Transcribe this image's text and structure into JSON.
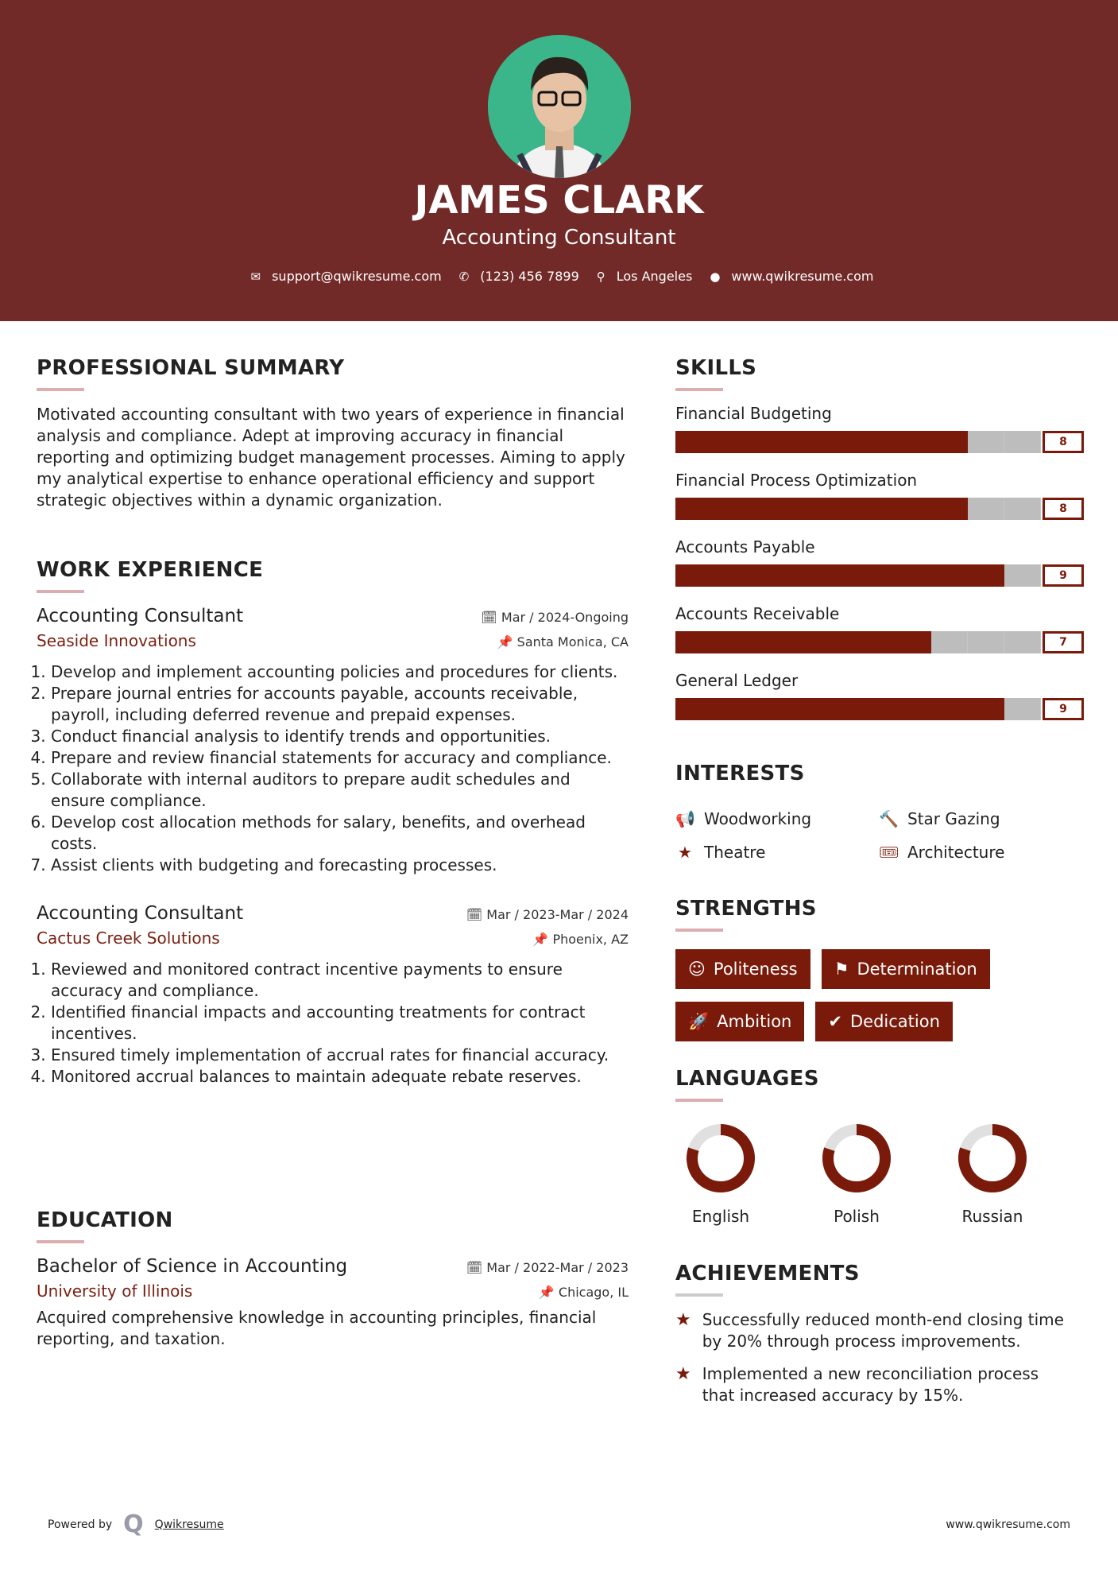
{
  "colors": {
    "header": "#722a28",
    "accent": "#7a1a0a",
    "bar_empty": "#bdbdbd"
  },
  "header": {
    "name": "JAMES CLARK",
    "title": "Accounting Consultant",
    "contacts": [
      {
        "icon": "envelope-icon",
        "text": "support@qwikresume.com"
      },
      {
        "icon": "phone-icon",
        "text": "(123) 456 7899"
      },
      {
        "icon": "map-pin-icon",
        "text": "Los Angeles"
      },
      {
        "icon": "globe-icon",
        "text": "www.qwikresume.com"
      }
    ]
  },
  "summary": {
    "heading": "PROFESSIONAL SUMMARY",
    "text": "Motivated accounting consultant with two years of experience in financial analysis and compliance. Adept at improving accuracy in financial reporting and optimizing budget management processes. Aiming to apply my analytical expertise to enhance operational efficiency and support strategic objectives within a dynamic organization."
  },
  "work": {
    "heading": "WORK EXPERIENCE",
    "jobs": [
      {
        "title": "Accounting Consultant",
        "date": "Mar / 2024-Ongoing",
        "company": "Seaside Innovations",
        "location": "Santa Monica, CA",
        "bullets": [
          "Develop and implement accounting policies and procedures for clients.",
          "Prepare journal entries for accounts payable, accounts receivable, payroll, including deferred revenue and prepaid expenses.",
          "Conduct financial analysis to identify trends and opportunities.",
          "Prepare and review financial statements for accuracy and compliance.",
          "Collaborate with internal auditors to prepare audit schedules and ensure compliance.",
          "Develop cost allocation methods for salary, benefits, and overhead costs.",
          "Assist clients with budgeting and forecasting processes."
        ]
      },
      {
        "title": "Accounting Consultant",
        "date": "Mar / 2023-Mar / 2024",
        "company": "Cactus Creek Solutions",
        "location": "Phoenix, AZ",
        "bullets": [
          "Reviewed and monitored contract incentive payments to ensure accuracy and compliance.",
          "Identified financial impacts and accounting treatments for contract incentives.",
          "Ensured timely implementation of accrual rates for financial accuracy.",
          "Monitored accrual balances to maintain adequate rebate reserves."
        ]
      }
    ]
  },
  "education": {
    "heading": "EDUCATION",
    "degree": "Bachelor of Science in Accounting",
    "date": "Mar / 2022-Mar / 2023",
    "school": "University of Illinois",
    "location": "Chicago, IL",
    "text": "Acquired comprehensive knowledge in accounting principles, financial reporting, and taxation."
  },
  "skills": {
    "heading": "SKILLS",
    "max": 10,
    "items": [
      {
        "name": "Financial Budgeting",
        "level": 8
      },
      {
        "name": "Financial Process Optimization",
        "level": 8
      },
      {
        "name": "Accounts Payable",
        "level": 9
      },
      {
        "name": "Accounts Receivable",
        "level": 7
      },
      {
        "name": "General Ledger",
        "level": 9
      }
    ]
  },
  "interests": {
    "heading": "INTERESTS",
    "items": [
      {
        "icon": "megaphone-icon",
        "label": "Woodworking"
      },
      {
        "icon": "gavel-icon",
        "label": "Star Gazing"
      },
      {
        "icon": "star-icon",
        "label": "Theatre"
      },
      {
        "icon": "ticket-icon",
        "label": "Architecture"
      }
    ]
  },
  "strengths": {
    "heading": "STRENGTHS",
    "items": [
      {
        "icon": "smile-icon",
        "label": "Politeness"
      },
      {
        "icon": "flag-icon",
        "label": "Determination"
      },
      {
        "icon": "rocket-icon",
        "label": "Ambition"
      },
      {
        "icon": "check-circle-icon",
        "label": "Dedication"
      }
    ]
  },
  "languages": {
    "heading": "LANGUAGES",
    "items": [
      {
        "name": "English",
        "level": 0.8
      },
      {
        "name": "Polish",
        "level": 0.8
      },
      {
        "name": "Russian",
        "level": 0.8
      }
    ]
  },
  "achievements": {
    "heading": "ACHIEVEMENTS",
    "items": [
      "Successfully reduced month-end closing time by 20% through process improvements.",
      "Implemented a new reconciliation process that increased accuracy by 15%."
    ]
  },
  "footer": {
    "powered": "Powered by",
    "brand": "Qwikresume",
    "site": "www.qwikresume.com"
  }
}
